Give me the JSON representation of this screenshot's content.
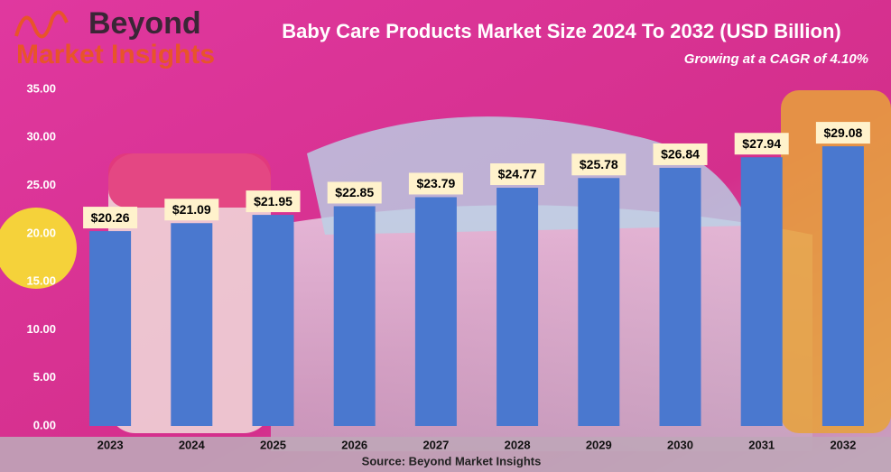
{
  "logo": {
    "line1": "Beyond",
    "line2": "Market Insights"
  },
  "chart_data": {
    "type": "bar",
    "title": "Baby Care Products Market Size 2024 To 2032 (USD Billion)",
    "subtitle": "Growing at a CAGR of 4.10%",
    "source": "Source: Beyond Market Insights",
    "categories": [
      "2023",
      "2024",
      "2025",
      "2026",
      "2027",
      "2028",
      "2029",
      "2030",
      "2031",
      "2032"
    ],
    "values": [
      20.26,
      21.09,
      21.95,
      22.85,
      23.79,
      24.77,
      25.78,
      26.84,
      27.94,
      29.08
    ],
    "value_labels": [
      "$20.26",
      "$21.09",
      "$21.95",
      "$22.85",
      "$23.79",
      "$24.77",
      "$25.78",
      "$26.84",
      "$27.94",
      "$29.08"
    ],
    "color": "#4a78cf",
    "ylim": [
      0,
      35
    ],
    "yticks": [
      {
        "value": 0,
        "label": "0.00"
      },
      {
        "value": 5,
        "label": "5.00"
      },
      {
        "value": 10,
        "label": "10.00"
      },
      {
        "value": 15,
        "label": "15.00"
      },
      {
        "value": 20,
        "label": "20.00"
      },
      {
        "value": 25,
        "label": "25.00"
      },
      {
        "value": 30,
        "label": "30.00"
      },
      {
        "value": 35,
        "label": "35.00"
      }
    ],
    "grid": false
  }
}
